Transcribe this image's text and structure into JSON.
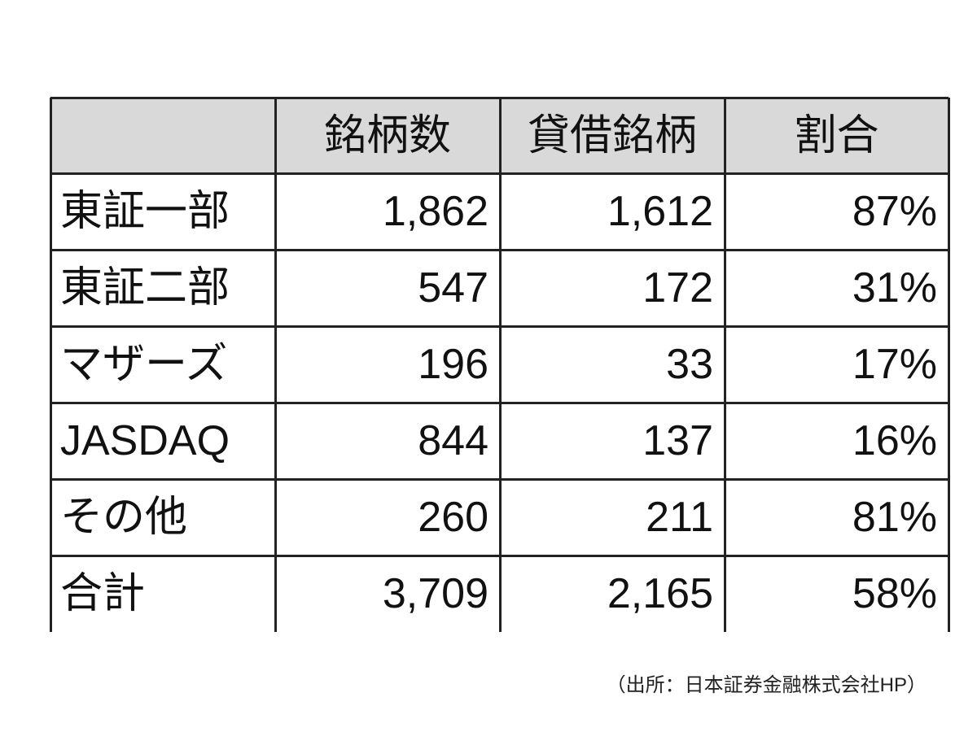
{
  "table": {
    "columns": [
      "銘柄数",
      "貸借銘柄",
      "割合"
    ],
    "rows": [
      [
        "東証一部",
        "1,862",
        "1,612",
        "87%"
      ],
      [
        "東証二部",
        "547",
        "172",
        "31%"
      ],
      [
        "マザーズ",
        "196",
        "33",
        "17%"
      ],
      [
        "JASDAQ",
        "844",
        "137",
        "16%"
      ],
      [
        "その他",
        "260",
        "211",
        "81%"
      ],
      [
        "合計",
        "3,709",
        "2,165",
        "58%"
      ]
    ]
  },
  "source": "（出所：日本証券金融株式会社HP）"
}
